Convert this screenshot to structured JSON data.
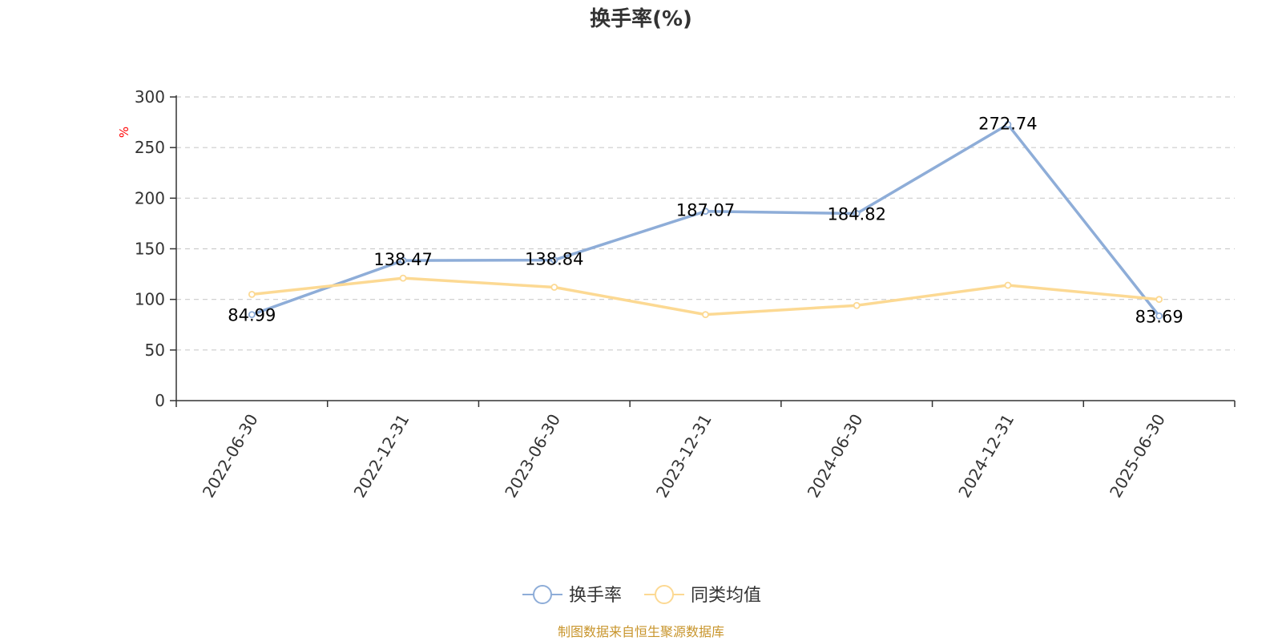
{
  "chart_data": {
    "type": "line",
    "title": "换手率(%)",
    "ylabel": "%",
    "xlabel": "",
    "ylim": [
      0,
      300
    ],
    "yticks": [
      0,
      50,
      100,
      150,
      200,
      250,
      300
    ],
    "grid": true,
    "legend_position": "bottom-center",
    "categories": [
      "2022-06-30",
      "2022-12-31",
      "2023-06-30",
      "2023-12-31",
      "2024-06-30",
      "2024-12-31",
      "2025-06-30"
    ],
    "series": [
      {
        "name": "换手率",
        "color": "#8eadd8",
        "values": [
          84.99,
          138.47,
          138.84,
          187.07,
          184.82,
          272.74,
          83.69
        ],
        "labels": [
          "84.99",
          "138.47",
          "138.84",
          "187.07",
          "184.82",
          "272.74",
          "83.69"
        ]
      },
      {
        "name": "同类均值",
        "color": "#fcd993",
        "values": [
          105,
          121,
          112,
          85,
          94,
          114,
          100
        ]
      }
    ],
    "source": "制图数据来自恒生聚源数据库"
  }
}
